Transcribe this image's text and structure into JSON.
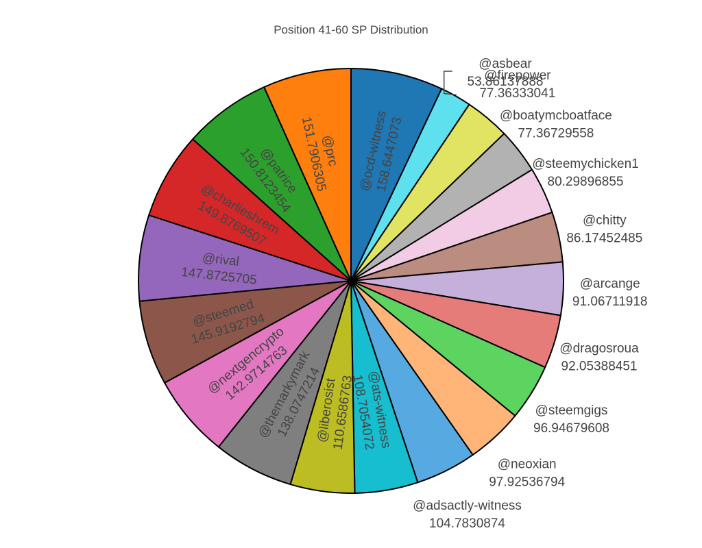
{
  "chart_data": {
    "type": "pie",
    "title": "Position 41-60 SP Distribution",
    "direction": "clockwise",
    "start": "12 o'clock",
    "slices": [
      {
        "label": "@ocd-witness",
        "value": "158.6447073",
        "color": "#1f77b4"
      },
      {
        "label": "@asbear",
        "value": "53.86137888",
        "color": "#5fe0ee"
      },
      {
        "label": "@firepower",
        "value": "77.36333041",
        "color": "#e1e363"
      },
      {
        "label": "@boatymcboatface",
        "value": "77.36729558",
        "color": "#b2b2b2"
      },
      {
        "label": "@steemychicken1",
        "value": "80.29896855",
        "color": "#f2cbe5"
      },
      {
        "label": "@chitty",
        "value": "86.17452485",
        "color": "#bb8c80"
      },
      {
        "label": "@arcange",
        "value": "91.06711918",
        "color": "#c5b0db"
      },
      {
        "label": "@dragosroua",
        "value": "92.05388451",
        "color": "#e57c7a"
      },
      {
        "label": "@steemgigs",
        "value": "96.94679608",
        "color": "#5cd45f"
      },
      {
        "label": "@neoxian",
        "value": "97.92536794",
        "color": "#ffb577"
      },
      {
        "label": "@adsactly-witness",
        "value": "104.7830874",
        "color": "#57a9e1"
      },
      {
        "label": "@ats-witness",
        "value": "108.7054072",
        "color": "#17becf"
      },
      {
        "label": "@liberosist",
        "value": "110.6586763",
        "color": "#bcbd22"
      },
      {
        "label": "@themarkymark",
        "value": "138.0747214",
        "color": "#7f7f7f"
      },
      {
        "label": "@nextgencrypto",
        "value": "142.9714763",
        "color": "#e377c2"
      },
      {
        "label": "@steemed",
        "value": "145.9192794",
        "color": "#8c564b"
      },
      {
        "label": "@rival",
        "value": "147.8725705",
        "color": "#9467bd"
      },
      {
        "label": "@charlieshrem",
        "value": "149.8769507",
        "color": "#d62728"
      },
      {
        "label": "@patrice",
        "value": "150.8123454",
        "color": "#2ca02c"
      },
      {
        "label": "@prc",
        "value": "151.7906305",
        "color": "#ff7f0e"
      }
    ]
  }
}
